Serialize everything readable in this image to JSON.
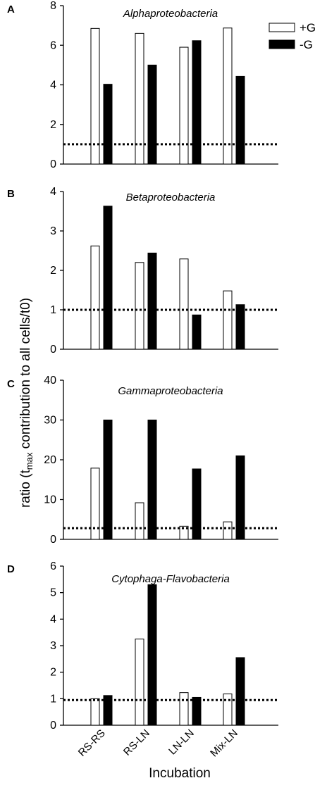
{
  "figure": {
    "ylabel": "ratio (tmax contribution to all cells/t0)",
    "ylabel_main": "ratio (t",
    "ylabel_sub": "max",
    "ylabel_rest": " contribution to all cells/t0)",
    "xlabel": "Incubation",
    "legend": [
      {
        "label": "+G",
        "color": "#ffffff"
      },
      {
        "label": "-G",
        "color": "#000000"
      }
    ]
  },
  "chart_data": [
    {
      "type": "bar",
      "panel": "A",
      "title": "Alphaproteobacteria",
      "categories": [
        "RS-RS",
        "RS-LN",
        "LN-LN",
        "Mix-LN"
      ],
      "series": [
        {
          "name": "+G",
          "color": "#ffffff",
          "values": [
            6.85,
            6.6,
            5.9,
            6.87
          ]
        },
        {
          "name": "-G",
          "color": "#000000",
          "values": [
            4.03,
            5.0,
            6.23,
            4.43
          ]
        }
      ],
      "ylim": [
        0,
        8
      ],
      "yticks": [
        0,
        2,
        4,
        6,
        8
      ],
      "reference_line": 1.0
    },
    {
      "type": "bar",
      "panel": "B",
      "title": "Betaproteobacteria",
      "categories": [
        "RS-RS",
        "RS-LN",
        "LN-LN",
        "Mix-LN"
      ],
      "series": [
        {
          "name": "+G",
          "color": "#ffffff",
          "values": [
            2.62,
            2.2,
            2.29,
            1.48
          ]
        },
        {
          "name": "-G",
          "color": "#000000",
          "values": [
            3.63,
            2.44,
            0.87,
            1.13
          ]
        }
      ],
      "ylim": [
        0,
        4
      ],
      "yticks": [
        0,
        1,
        2,
        3,
        4
      ],
      "reference_line": 1.0
    },
    {
      "type": "bar",
      "panel": "C",
      "title": "Gammaproteobacteria",
      "categories": [
        "RS-RS",
        "RS-LN",
        "LN-LN",
        "Mix-LN"
      ],
      "series": [
        {
          "name": "+G",
          "color": "#ffffff",
          "values": [
            17.9,
            9.2,
            3.3,
            4.4
          ]
        },
        {
          "name": "-G",
          "color": "#000000",
          "values": [
            30.0,
            30.0,
            17.7,
            21.0
          ]
        }
      ],
      "ylim": [
        0,
        40
      ],
      "yticks": [
        0,
        10,
        20,
        30,
        40
      ],
      "reference_line": 2.8
    },
    {
      "type": "bar",
      "panel": "D",
      "title": "Cytophaga-Flavobacteria",
      "categories": [
        "RS-RS",
        "RS-LN",
        "LN-LN",
        "Mix-LN"
      ],
      "series": [
        {
          "name": "+G",
          "color": "#ffffff",
          "values": [
            1.0,
            3.25,
            1.23,
            1.18
          ]
        },
        {
          "name": "-G",
          "color": "#000000",
          "values": [
            1.12,
            5.3,
            1.05,
            2.55
          ]
        }
      ],
      "ylim": [
        0,
        6
      ],
      "yticks": [
        0,
        1,
        2,
        3,
        4,
        5,
        6
      ],
      "reference_line": 0.95
    }
  ]
}
